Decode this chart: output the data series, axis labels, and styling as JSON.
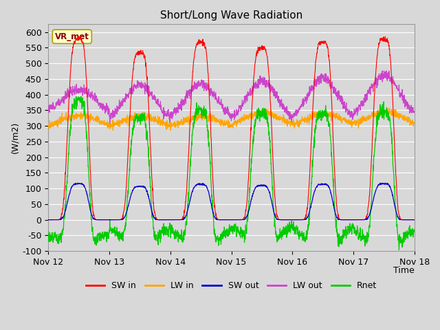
{
  "title": "Short/Long Wave Radiation",
  "ylabel": "(W/m2)",
  "xlabel": "Time",
  "annotation": "VR_met",
  "ylim": [
    -100,
    625
  ],
  "yticks": [
    -100,
    -50,
    0,
    50,
    100,
    150,
    200,
    250,
    300,
    350,
    400,
    450,
    500,
    550,
    600
  ],
  "xtick_labels": [
    "Nov 12",
    "Nov 13",
    "Nov 14",
    "Nov 15",
    "Nov 16",
    "Nov 17",
    "Nov 18"
  ],
  "colors": {
    "SW_in": "#ff0000",
    "LW_in": "#ffa500",
    "SW_out": "#0000cc",
    "LW_out": "#cc44cc",
    "Rnet": "#00cc00"
  },
  "n_days": 6,
  "points_per_day": 288,
  "figsize": [
    6.4,
    4.8
  ],
  "dpi": 100,
  "bg_color": "#d8d8d8",
  "grid_color": "#ffffff",
  "annotation_facecolor": "#ffffcc",
  "annotation_edgecolor": "#aaa000",
  "annotation_textcolor": "#880000"
}
